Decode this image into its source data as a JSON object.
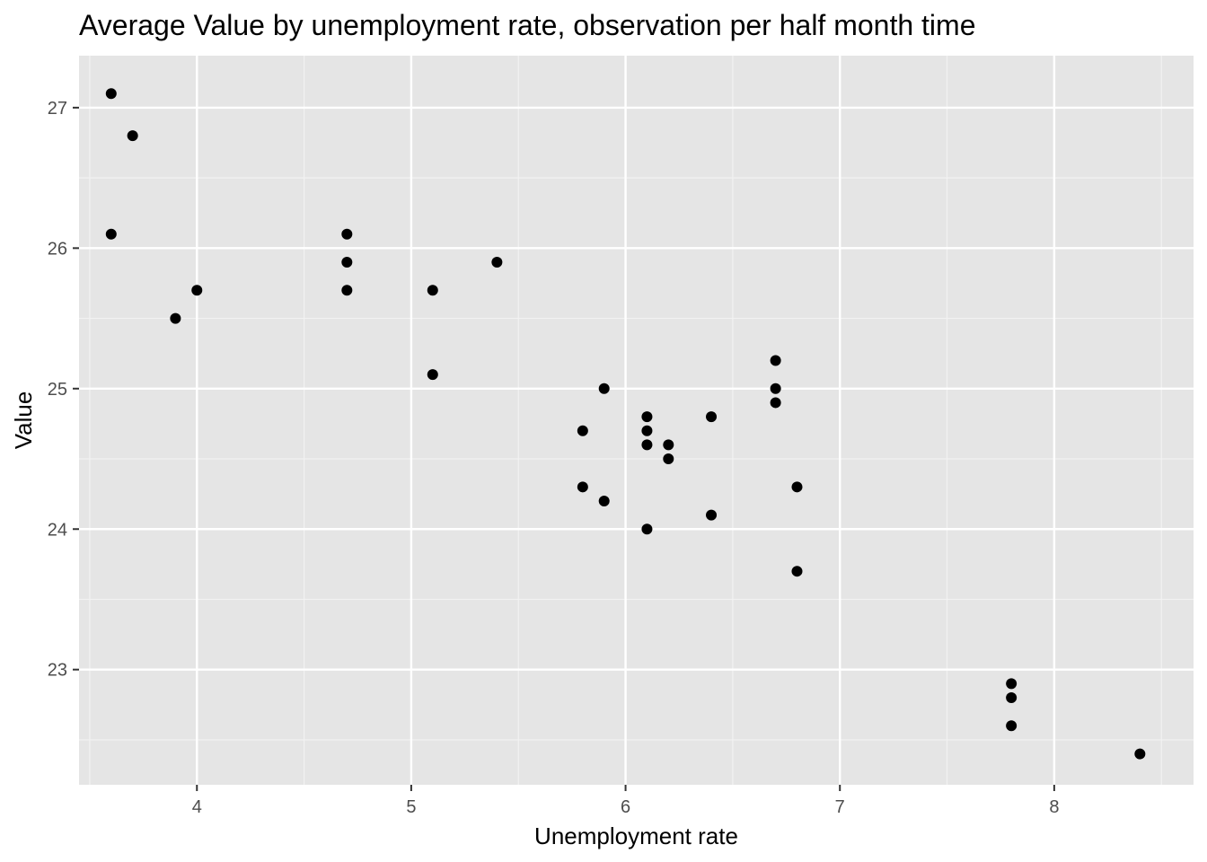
{
  "chart_data": {
    "type": "scatter",
    "title": "Average Value by unemployment rate, observation per half month time",
    "xlabel": "Unemployment rate",
    "ylabel": "Value",
    "xlim": [
      3.45,
      8.65
    ],
    "ylim": [
      22.18,
      27.37
    ],
    "x_ticks": [
      4,
      5,
      6,
      7,
      8
    ],
    "x_minor_ticks": [
      3.5,
      4.5,
      5.5,
      6.5,
      7.5,
      8.5
    ],
    "y_ticks": [
      23,
      24,
      25,
      26,
      27
    ],
    "y_minor_ticks": [
      22.5,
      23.5,
      24.5,
      25.5,
      26.5
    ],
    "x_tick_labels": [
      "4",
      "5",
      "6",
      "7",
      "8"
    ],
    "y_tick_labels": [
      "23",
      "24",
      "25",
      "26",
      "27"
    ],
    "grid": true,
    "colors": {
      "panel": "#e5e5e5",
      "grid_major": "#ffffff",
      "grid_minor": "#f2f2f2",
      "point": "#000000",
      "tick": "#333333"
    },
    "points": [
      {
        "x": 3.6,
        "y": 27.1
      },
      {
        "x": 3.7,
        "y": 26.8
      },
      {
        "x": 3.6,
        "y": 26.1
      },
      {
        "x": 4.0,
        "y": 25.7
      },
      {
        "x": 3.9,
        "y": 25.5
      },
      {
        "x": 4.7,
        "y": 26.1
      },
      {
        "x": 4.7,
        "y": 25.9
      },
      {
        "x": 4.7,
        "y": 25.7
      },
      {
        "x": 5.1,
        "y": 25.7
      },
      {
        "x": 5.4,
        "y": 25.9
      },
      {
        "x": 5.1,
        "y": 25.1
      },
      {
        "x": 5.9,
        "y": 25.0
      },
      {
        "x": 5.8,
        "y": 24.7
      },
      {
        "x": 5.8,
        "y": 24.3
      },
      {
        "x": 5.9,
        "y": 24.2
      },
      {
        "x": 6.1,
        "y": 24.8
      },
      {
        "x": 6.1,
        "y": 24.7
      },
      {
        "x": 6.1,
        "y": 24.6
      },
      {
        "x": 6.2,
        "y": 24.6
      },
      {
        "x": 6.2,
        "y": 24.5
      },
      {
        "x": 6.1,
        "y": 24.0
      },
      {
        "x": 6.4,
        "y": 24.8
      },
      {
        "x": 6.4,
        "y": 24.1
      },
      {
        "x": 6.7,
        "y": 25.2
      },
      {
        "x": 6.7,
        "y": 25.0
      },
      {
        "x": 6.7,
        "y": 24.9
      },
      {
        "x": 6.8,
        "y": 24.3
      },
      {
        "x": 6.8,
        "y": 23.7
      },
      {
        "x": 7.8,
        "y": 22.9
      },
      {
        "x": 7.8,
        "y": 22.8
      },
      {
        "x": 7.8,
        "y": 22.6
      },
      {
        "x": 8.4,
        "y": 22.4
      }
    ]
  }
}
